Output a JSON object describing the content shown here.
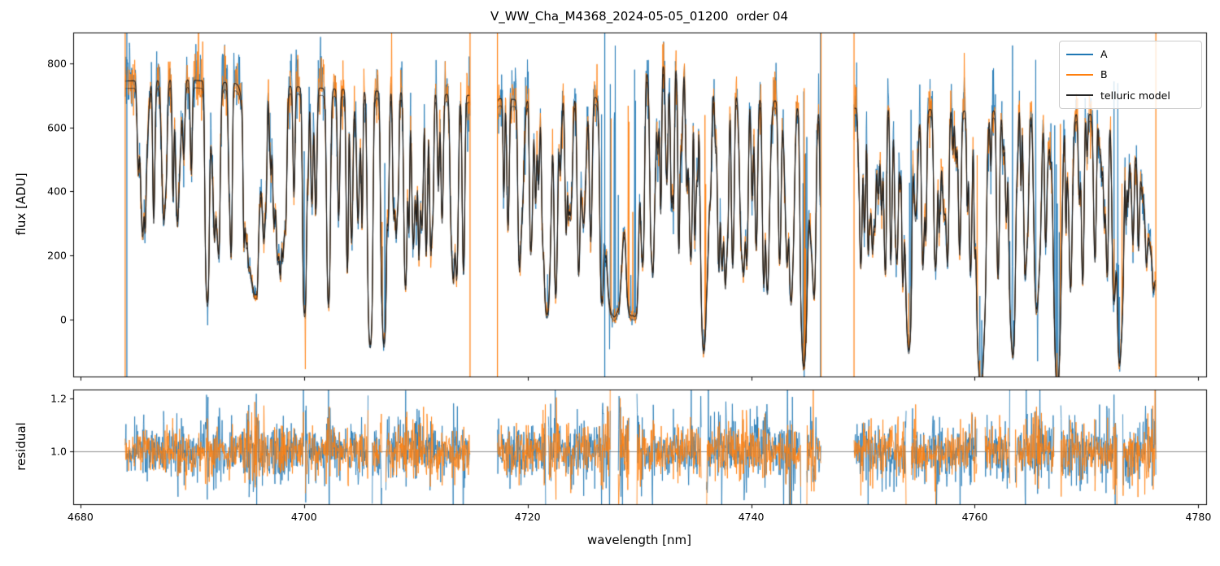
{
  "figure": {
    "background": "#ffffff"
  },
  "chart_data": {
    "type": "line",
    "title": "V_WW_Cha_M4368_2024-05-05_01200  order 04",
    "xlabel": "wavelength [nm]",
    "axes": {
      "xlim": [
        4679.35,
        4780.7
      ],
      "xticks": [
        4680,
        4700,
        4720,
        4740,
        4760,
        4780
      ],
      "xtick_labels": [
        "4680",
        "4700",
        "4720",
        "4740",
        "4760",
        "4780"
      ],
      "grid": false
    },
    "panels": [
      {
        "name": "flux",
        "ylabel": "flux [ADU]",
        "ylim": [
          -177.8,
          896.5
        ],
        "yticks": [
          0,
          200,
          400,
          600,
          800
        ],
        "ytick_labels": [
          "0",
          "200",
          "400",
          "600",
          "800"
        ]
      },
      {
        "name": "residual",
        "ylabel": "residual",
        "ylim": [
          0.8,
          1.2338
        ],
        "yticks": [
          1.0,
          1.2
        ],
        "ytick_labels": [
          "1.0",
          "1.2"
        ],
        "hline": 1.0,
        "hline_color": "#808080"
      }
    ],
    "legend": {
      "position": "upper right",
      "entries": [
        {
          "label": "A",
          "color": "#1f77b4"
        },
        {
          "label": "B",
          "color": "#ff7f0e"
        },
        {
          "label": "telluric model",
          "color": "#262626"
        }
      ]
    },
    "segments": [
      {
        "start": 4684.0,
        "end": 4714.85
      },
      {
        "start": 4717.3,
        "end": 4746.25
      },
      {
        "start": 4749.2,
        "end": 4776.2
      }
    ],
    "continuum_points": [
      [
        4679,
        745
      ],
      [
        4684,
        745
      ],
      [
        4689,
        750
      ],
      [
        4694,
        738
      ],
      [
        4698,
        730
      ],
      [
        4702,
        722
      ],
      [
        4706,
        715
      ],
      [
        4710,
        708
      ],
      [
        4715,
        700
      ],
      [
        4717.5,
        690
      ],
      [
        4722,
        682
      ],
      [
        4727,
        700
      ],
      [
        4730.5,
        770
      ],
      [
        4732,
        795
      ],
      [
        4734.5,
        790
      ],
      [
        4736.5,
        715
      ],
      [
        4740,
        695
      ],
      [
        4743,
        680
      ],
      [
        4746.3,
        650
      ],
      [
        4749,
        660
      ],
      [
        4753,
        660
      ],
      [
        4757,
        655
      ],
      [
        4760,
        650
      ],
      [
        4764,
        655
      ],
      [
        4768,
        645
      ],
      [
        4771,
        640
      ],
      [
        4773.8,
        615
      ],
      [
        4774.8,
        450
      ],
      [
        4775.6,
        250
      ],
      [
        4776.3,
        110
      ],
      [
        4781,
        100
      ]
    ],
    "absorption_lines": [
      [
        4691.35,
        2.2,
        0.12
      ],
      [
        4692.4,
        0.55,
        0.08
      ],
      [
        4693.3,
        0.5,
        0.08
      ],
      [
        4695.45,
        1.85,
        0.42
      ],
      [
        4697.3,
        0.75,
        0.1
      ],
      [
        4698.35,
        0.85,
        0.1
      ],
      [
        4699.1,
        0.6,
        0.08
      ],
      [
        4700.05,
        3.6,
        0.11
      ],
      [
        4701.05,
        0.75,
        0.09
      ],
      [
        4702.2,
        0.95,
        0.1
      ],
      [
        4703.1,
        0.8,
        0.09
      ],
      [
        4704.25,
        1.05,
        0.1
      ],
      [
        4705.92,
        5.0,
        0.13
      ],
      [
        4707.15,
        5.0,
        0.13
      ],
      [
        4708.25,
        0.9,
        0.09
      ],
      [
        4709.05,
        1.6,
        0.1
      ],
      [
        4710.3,
        0.85,
        0.09
      ],
      [
        4711.35,
        1.2,
        0.1
      ],
      [
        4712.35,
        0.8,
        0.09
      ],
      [
        4713.35,
        1.5,
        0.1
      ],
      [
        4714.25,
        0.9,
        0.09
      ],
      [
        4718.25,
        0.85,
        0.09
      ],
      [
        4719.25,
        1.15,
        0.1
      ],
      [
        4720.35,
        0.95,
        0.1
      ],
      [
        4721.35,
        0.8,
        0.09
      ],
      [
        4722.55,
        1.05,
        0.1
      ],
      [
        4723.45,
        0.9,
        0.09
      ],
      [
        4724.55,
        1.25,
        0.1
      ],
      [
        4725.65,
        1.0,
        0.1
      ],
      [
        4726.65,
        1.3,
        0.12
      ],
      [
        4727.75,
        4.2,
        0.45
      ],
      [
        4729.35,
        3.8,
        0.33
      ],
      [
        4731.05,
        0.7,
        0.1
      ],
      [
        4732.45,
        0.6,
        0.1
      ],
      [
        4733.55,
        0.55,
        0.1
      ],
      [
        4734.65,
        0.75,
        0.1
      ],
      [
        4735.75,
        5.0,
        0.13
      ],
      [
        4737.05,
        0.85,
        0.09
      ],
      [
        4738.35,
        1.4,
        0.1
      ],
      [
        4739.35,
        0.9,
        0.09
      ],
      [
        4740.45,
        1.1,
        0.1
      ],
      [
        4741.45,
        1.0,
        0.09
      ],
      [
        4742.55,
        1.3,
        0.1
      ],
      [
        4743.55,
        1.0,
        0.09
      ],
      [
        4744.7,
        4.5,
        0.15
      ],
      [
        4745.65,
        1.2,
        0.1
      ],
      [
        4749.85,
        0.9,
        0.09
      ],
      [
        4750.85,
        1.1,
        0.1
      ],
      [
        4751.95,
        1.0,
        0.09
      ],
      [
        4753.05,
        1.2,
        0.1
      ],
      [
        4754.1,
        5.0,
        0.14
      ],
      [
        4755.35,
        1.0,
        0.09
      ],
      [
        4756.45,
        1.2,
        0.1
      ],
      [
        4757.55,
        0.9,
        0.09
      ],
      [
        4758.65,
        1.1,
        0.1
      ],
      [
        4759.65,
        1.0,
        0.09
      ],
      [
        4760.55,
        3.2,
        0.24
      ],
      [
        4762.05,
        1.0,
        0.09
      ],
      [
        4763.4,
        4.0,
        0.14
      ],
      [
        4764.55,
        1.1,
        0.1
      ],
      [
        4765.55,
        0.9,
        0.09
      ],
      [
        4766.35,
        1.0,
        0.09
      ],
      [
        4767.4,
        3.4,
        0.22
      ],
      [
        4768.55,
        1.1,
        0.1
      ],
      [
        4769.65,
        0.9,
        0.09
      ],
      [
        4770.75,
        1.2,
        0.1
      ],
      [
        4771.85,
        1.0,
        0.09
      ],
      [
        4772.95,
        5.0,
        0.13
      ],
      [
        4774.15,
        0.8,
        0.09
      ]
    ],
    "deep_v_lines": [
      [
        4760.55,
        250,
        0.3
      ],
      [
        4767.38,
        235,
        0.27
      ],
      [
        4763.4,
        120,
        0.18
      ],
      [
        4744.7,
        150,
        0.18
      ],
      [
        4754.1,
        100,
        0.15
      ],
      [
        4772.95,
        140,
        0.15
      ],
      [
        4735.75,
        100,
        0.14
      ],
      [
        4705.92,
        80,
        0.12
      ],
      [
        4707.15,
        80,
        0.12
      ]
    ],
    "line_forests": [
      {
        "seed": 7,
        "count_per_nm": 2.1,
        "a": [
          0.15,
          0.8
        ],
        "sigma": [
          0.05,
          0.095
        ]
      },
      {
        "seed": 11,
        "count_per_nm": 0.55,
        "a": [
          0.4,
          1.3
        ],
        "sigma": [
          0.1,
          0.2
        ]
      }
    ],
    "noise": {
      "seed": 42,
      "step": 0.034,
      "A": {
        "rel": 0.075,
        "abs": 14,
        "streak_prob": 0.22
      },
      "B": {
        "rel": 0.06,
        "abs": 12,
        "streak_prob": 0.1
      }
    },
    "residual": {
      "seed": 99,
      "A_sigma": 0.045,
      "B_sigma": 0.036,
      "base_flux": 700,
      "mask_below": 28,
      "boost_cap": 3.2
    },
    "edge_spikes": {
      "A": [
        4684.15,
        4726.9,
        4746.2
      ],
      "B": [
        4684.0,
        4714.85,
        4717.3,
        4746.25,
        4749.2,
        4776.2
      ]
    },
    "series_colors": {
      "A": "#1f77b4",
      "B": "#ff7f0e",
      "telluric_model": "#1a1a1a"
    }
  }
}
